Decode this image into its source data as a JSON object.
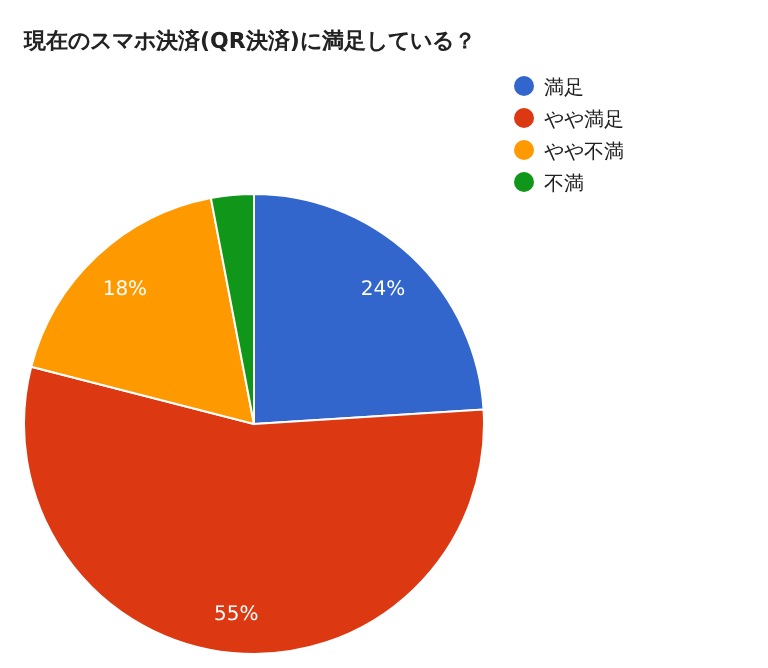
{
  "chart_data": {
    "type": "pie",
    "title": "現在のスマホ決済(QR決済)に満足している？",
    "categories": [
      "満足",
      "やや満足",
      "やや不満",
      "不満"
    ],
    "values": [
      24,
      55,
      18,
      3
    ],
    "colors": [
      "#3366cc",
      "#dc3912",
      "#ff9900",
      "#109618"
    ],
    "value_labels": [
      "24%",
      "55%",
      "18%",
      null
    ],
    "legend": "right"
  }
}
